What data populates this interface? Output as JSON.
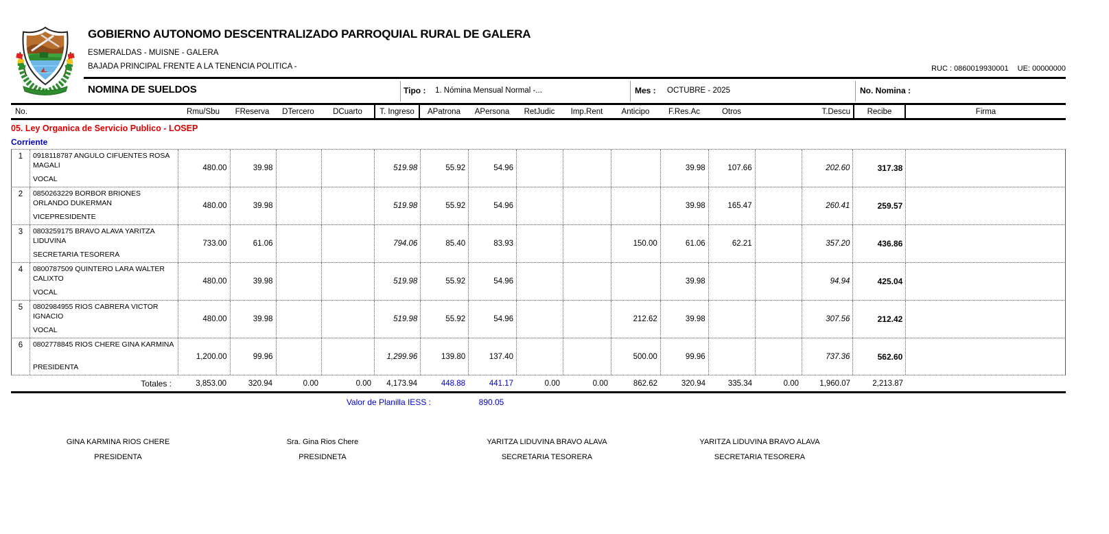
{
  "header": {
    "org_name": "GOBIERNO AUTONOMO DESCENTRALIZADO PARROQUIAL RURAL DE GALERA",
    "location": "ESMERALDAS - MUISNE - GALERA",
    "address": "BAJADA PRINCIPAL FRENTE A LA TENENCIA POLITICA -",
    "ruc": "RUC : 0860019930001",
    "ue": "UE: 00000000"
  },
  "title_bar": {
    "title": "NOMINA DE SUELDOS",
    "tipo_label": "Tipo :",
    "tipo_value": "1. Nómina Mensual Normal -...",
    "mes_label": "Mes :",
    "mes_value": "OCTUBRE - 2025",
    "nomina_label": "No. Nomina :"
  },
  "table": {
    "columns": {
      "no": "No.",
      "numeric": [
        "Rmu/Sbu",
        "FReserva",
        "DTercero",
        "DCuarto",
        "T. Ingreso",
        "APatrona",
        "APersona",
        "RetJudic",
        "Imp.Rent",
        "Anticipo",
        "F.Res.Ac",
        "Otros",
        "",
        "T.Descu",
        "Recibe"
      ],
      "firma": "Firma"
    },
    "section": "05. Ley Organica de Servicio Publico - LOSEP",
    "subsection": "Corriente",
    "rows": [
      {
        "no": "1",
        "id_name": "0918118787  ANGULO CIFUENTES ROSA MAGALI",
        "position": "VOCAL",
        "values": [
          "480.00",
          "39.98",
          "",
          "",
          "519.98",
          "55.92",
          "54.96",
          "",
          "",
          "",
          "39.98",
          "107.66",
          "",
          "202.60",
          "317.38"
        ]
      },
      {
        "no": "2",
        "id_name": "0850263229  BORBOR BRIONES ORLANDO DUKERMAN",
        "position": "VICEPRESIDENTE",
        "values": [
          "480.00",
          "39.98",
          "",
          "",
          "519.98",
          "55.92",
          "54.96",
          "",
          "",
          "",
          "39.98",
          "165.47",
          "",
          "260.41",
          "259.57"
        ]
      },
      {
        "no": "3",
        "id_name": "0803259175  BRAVO ALAVA YARITZA LIDUVINA",
        "position": "SECRETARIA TESORERA",
        "values": [
          "733.00",
          "61.06",
          "",
          "",
          "794.06",
          "85.40",
          "83.93",
          "",
          "",
          "150.00",
          "61.06",
          "62.21",
          "",
          "357.20",
          "436.86"
        ]
      },
      {
        "no": "4",
        "id_name": "0800787509  QUINTERO LARA WALTER CALIXTO",
        "position": "VOCAL",
        "values": [
          "480.00",
          "39.98",
          "",
          "",
          "519.98",
          "55.92",
          "54.96",
          "",
          "",
          "",
          "39.98",
          "",
          "",
          "94.94",
          "425.04"
        ]
      },
      {
        "no": "5",
        "id_name": "0802984955  RIOS CABRERA VICTOR IGNACIO",
        "position": "VOCAL",
        "values": [
          "480.00",
          "39.98",
          "",
          "",
          "519.98",
          "55.92",
          "54.96",
          "",
          "",
          "212.62",
          "39.98",
          "",
          "",
          "307.56",
          "212.42"
        ]
      },
      {
        "no": "6",
        "id_name": "0802778845  RIOS CHERE GINA KARMINA",
        "position": "PRESIDENTA",
        "values": [
          "1,200.00",
          "99.96",
          "",
          "",
          "1,299.96",
          "139.80",
          "137.40",
          "",
          "",
          "500.00",
          "99.96",
          "",
          "",
          "737.36",
          "562.60"
        ]
      }
    ],
    "totals_label": "Totales :",
    "totals_values": [
      "3,853.00",
      "320.94",
      "0.00",
      "0.00",
      "4,173.94",
      "448.88",
      "441.17",
      "0.00",
      "0.00",
      "862.62",
      "320.94",
      "335.34",
      "0.00",
      "1,960.07",
      "2,213.87"
    ],
    "iess_label": "Valor de Planilla IESS :",
    "iess_value": "890.05"
  },
  "signatures": [
    {
      "name": "GINA KARMINA RIOS CHERE",
      "title": "PRESIDENTA"
    },
    {
      "name": "Sra. Gina Rios Chere",
      "title": "PRESIDNETA"
    },
    {
      "name": "YARITZA LIDUVINA BRAVO ALAVA",
      "title": "SECRETARIA TESORERA"
    },
    {
      "name": "YARITZA LIDUVINA BRAVO ALAVA",
      "title": "SECRETARIA TESORERA"
    }
  ],
  "colors": {
    "accent_red": "#dd0000",
    "accent_blue": "#0000cc"
  }
}
